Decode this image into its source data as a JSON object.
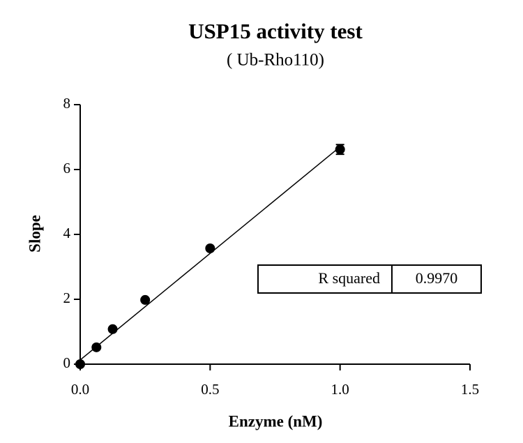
{
  "chart_data": {
    "type": "scatter",
    "title": "USP15 activity test",
    "subtitle": "( Ub-Rho110)",
    "x_label": "Enzyme (nM)",
    "y_label": "Slope",
    "series": [
      {
        "color": "#000000",
        "x": [
          0,
          0.0625,
          0.125,
          0.25,
          0.5,
          1.0
        ],
        "values": [
          0,
          0.52,
          1.08,
          1.98,
          3.57,
          6.62
        ],
        "errors": [
          0,
          0,
          0,
          0,
          0,
          0.15
        ]
      }
    ],
    "fit": {
      "color": "#000000",
      "x": [
        0,
        1.0
      ],
      "values": [
        0.13,
        6.7
      ]
    },
    "stats_table": {
      "label": "R squared",
      "value": "0.9970"
    },
    "xlim": [
      0,
      1.5
    ],
    "ylim": [
      0,
      8
    ],
    "xticks": [
      {
        "value": 0,
        "label": "0.0"
      },
      0.5,
      {
        "value": 1,
        "label": "1.0"
      },
      1.5
    ],
    "yticks": [
      0,
      2,
      4,
      6,
      8
    ]
  }
}
